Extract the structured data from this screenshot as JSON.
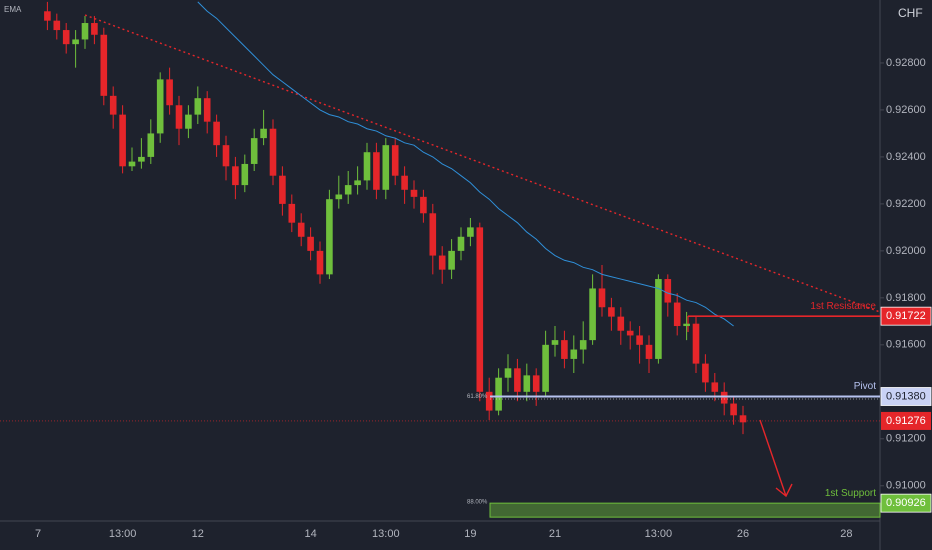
{
  "chart_data": {
    "type": "candlestick",
    "indicator": "EMA",
    "currency": "CHF",
    "categories": [
      "7",
      null,
      null,
      null,
      null,
      null,
      null,
      null,
      null,
      "13:00",
      null,
      null,
      null,
      null,
      null,
      null,
      null,
      "12",
      null,
      null,
      null,
      null,
      null,
      null,
      null,
      null,
      null,
      null,
      null,
      "14",
      null,
      null,
      null,
      null,
      null,
      null,
      null,
      "13:00",
      null,
      null,
      null,
      null,
      null,
      null,
      null,
      null,
      "19",
      null,
      null,
      null,
      null,
      null,
      null,
      null,
      null,
      "21",
      null,
      null,
      null,
      null,
      null,
      null,
      null,
      null,
      null,
      null,
      "13:00",
      null,
      null,
      null,
      null,
      null,
      null,
      null,
      null,
      "26",
      null,
      null,
      null,
      null,
      null,
      null,
      null,
      null,
      null,
      null,
      "28",
      null,
      null,
      null
    ],
    "open": [
      null,
      0.9302,
      0.9298,
      0.9294,
      0.9288,
      0.929,
      0.9297,
      0.9292,
      0.9266,
      0.9258,
      0.9236,
      0.9238,
      0.924,
      0.925,
      0.9273,
      0.9262,
      0.9252,
      0.9258,
      0.9265,
      0.9255,
      0.9245,
      0.9236,
      0.9228,
      0.9237,
      0.9248,
      0.9252,
      0.9232,
      0.922,
      0.9212,
      0.9206,
      0.92,
      0.919,
      0.9222,
      0.9224,
      0.9228,
      0.923,
      0.9242,
      0.9226,
      0.9245,
      0.9232,
      0.9226,
      0.9223,
      0.9216,
      0.9198,
      0.9192,
      0.92,
      0.9206,
      0.921,
      0.914,
      0.9132,
      0.9146,
      0.915,
      0.914,
      0.9147,
      0.914,
      0.916,
      0.9162,
      0.9154,
      0.9158,
      0.9162,
      0.9184,
      0.9176,
      0.9172,
      0.9166,
      0.9164,
      0.916,
      0.9154,
      0.9188,
      0.9178,
      0.9168,
      0.9169,
      0.9152,
      0.9144,
      0.914,
      0.9135,
      0.913,
      null,
      null,
      null,
      null,
      null,
      null,
      null,
      null,
      null,
      null,
      null,
      null,
      null,
      null
    ],
    "high": [
      null,
      0.9306,
      0.9301,
      0.9297,
      0.9294,
      0.93,
      0.93,
      0.9295,
      0.927,
      0.9262,
      0.9244,
      0.9248,
      0.9256,
      0.9276,
      0.9278,
      0.9266,
      0.9262,
      0.927,
      0.9268,
      0.9258,
      0.9249,
      0.924,
      0.9241,
      0.9252,
      0.926,
      0.9256,
      0.9236,
      0.9224,
      0.9216,
      0.921,
      0.9204,
      0.9226,
      0.9232,
      0.9234,
      0.9236,
      0.9246,
      0.9246,
      0.9248,
      0.9248,
      0.9236,
      0.923,
      0.9226,
      0.922,
      0.9202,
      0.9205,
      0.921,
      0.9214,
      0.9212,
      0.9146,
      0.915,
      0.9156,
      0.9154,
      0.9152,
      0.915,
      0.9166,
      0.9168,
      0.9166,
      0.9164,
      0.917,
      0.919,
      0.9194,
      0.918,
      0.9176,
      0.917,
      0.9168,
      0.9164,
      0.919,
      0.919,
      0.9182,
      0.9174,
      0.9172,
      0.9156,
      0.9148,
      0.9144,
      0.9138,
      0.9134,
      null,
      null,
      null,
      null,
      null,
      null,
      null,
      null,
      null,
      null,
      null,
      null,
      null,
      null
    ],
    "low": [
      null,
      0.9294,
      0.929,
      0.9284,
      0.9278,
      0.9286,
      0.9288,
      0.9262,
      0.9252,
      0.9233,
      0.9234,
      0.9235,
      0.9237,
      0.9246,
      0.9258,
      0.9245,
      0.9248,
      0.9254,
      0.925,
      0.924,
      0.923,
      0.9222,
      0.9225,
      0.9234,
      0.9245,
      0.9228,
      0.9215,
      0.9208,
      0.9202,
      0.9196,
      0.9186,
      0.9188,
      0.9218,
      0.922,
      0.9224,
      0.9226,
      0.9222,
      0.9222,
      0.9228,
      0.922,
      0.9218,
      0.9212,
      0.919,
      0.9186,
      0.9188,
      0.9196,
      0.9202,
      0.9136,
      0.9128,
      0.913,
      0.914,
      0.9136,
      0.9136,
      0.9134,
      0.9138,
      0.9155,
      0.915,
      0.9148,
      0.9152,
      0.916,
      0.9172,
      0.9166,
      0.916,
      0.9158,
      0.9152,
      0.9148,
      0.9152,
      0.9172,
      0.9164,
      0.9162,
      0.9148,
      0.914,
      0.9136,
      0.913,
      0.9126,
      0.9122,
      null,
      null,
      null,
      null,
      null,
      null,
      null,
      null,
      null,
      null,
      null,
      null,
      null,
      null
    ],
    "close": [
      null,
      0.9298,
      0.9294,
      0.9288,
      0.929,
      0.9297,
      0.9292,
      0.9266,
      0.9258,
      0.9236,
      0.9238,
      0.924,
      0.925,
      0.9273,
      0.9262,
      0.9252,
      0.9258,
      0.9265,
      0.9255,
      0.9245,
      0.9236,
      0.9228,
      0.9237,
      0.9248,
      0.9252,
      0.9232,
      0.922,
      0.9212,
      0.9206,
      0.92,
      0.919,
      0.9222,
      0.9224,
      0.9228,
      0.923,
      0.9242,
      0.9226,
      0.9245,
      0.9232,
      0.9226,
      0.9223,
      0.9216,
      0.9198,
      0.9192,
      0.92,
      0.9206,
      0.921,
      0.914,
      0.9132,
      0.9146,
      0.915,
      0.914,
      0.9147,
      0.914,
      0.916,
      0.9162,
      0.9154,
      0.9158,
      0.9162,
      0.9184,
      0.9176,
      0.9172,
      0.9166,
      0.9164,
      0.916,
      0.9154,
      0.9188,
      0.9178,
      0.9168,
      0.9169,
      0.9152,
      0.9144,
      0.914,
      0.9135,
      0.913,
      0.9127,
      null,
      null,
      null,
      null,
      null,
      null,
      null,
      null,
      null,
      null,
      null,
      null,
      null,
      null
    ],
    "ema": {
      "color": "#2f8fd8",
      "values": [
        null,
        null,
        null,
        null,
        null,
        null,
        null,
        null,
        null,
        null,
        null,
        null,
        null,
        null,
        null,
        null,
        null,
        0.9306,
        0.9302,
        0.9299,
        0.9295,
        0.9291,
        0.9287,
        0.9283,
        0.9279,
        0.9275,
        0.9272,
        0.9269,
        0.9266,
        0.9263,
        0.926,
        0.9258,
        0.9257,
        0.9255,
        0.9254,
        0.9252,
        0.9251,
        0.9249,
        0.9248,
        0.9246,
        0.9245,
        0.9242,
        0.924,
        0.9237,
        0.9235,
        0.9232,
        0.9229,
        0.9225,
        0.9222,
        0.9218,
        0.9215,
        0.9212,
        0.9208,
        0.9205,
        0.9201,
        0.9198,
        0.9196,
        0.9195,
        0.9193,
        0.9192,
        0.919,
        0.9189,
        0.9188,
        0.9187,
        0.9186,
        0.9185,
        0.9184,
        0.9182,
        0.9181,
        0.9179,
        0.9178,
        0.9176,
        0.9173,
        0.9171,
        0.9168,
        null,
        null,
        null,
        null,
        null,
        null,
        null,
        null,
        null,
        null,
        null,
        null,
        null,
        null,
        null
      ]
    },
    "up_color": "#6fbf3c",
    "down_color": "#e5262a",
    "ylim": [
      0.9085,
      0.93068
    ],
    "yticks": [
      {
        "value": 0.928,
        "label": "0.92800"
      },
      {
        "value": 0.926,
        "label": "0.92600"
      },
      {
        "value": 0.924,
        "label": "0.92400"
      },
      {
        "value": 0.922,
        "label": "0.92200"
      },
      {
        "value": 0.92,
        "label": "0.92000"
      },
      {
        "value": 0.918,
        "label": "0.91800"
      },
      {
        "value": 0.916,
        "label": "0.91600"
      },
      {
        "value": 0.912,
        "label": "0.91200"
      },
      {
        "value": 0.91,
        "label": "0.91000"
      }
    ],
    "levels": [
      {
        "name": "1st Resistance",
        "value": 0.91722,
        "label": "0.91722",
        "color": "#e5262a"
      },
      {
        "name": "Pivot",
        "value": 0.9138,
        "label": "0.91380",
        "color": "#b7c3f0"
      },
      {
        "name": "1st Support",
        "value": 0.90926,
        "label": "0.90926",
        "color": "#6fbf3c"
      }
    ],
    "last_price": {
      "value": 0.91276,
      "label": "0.91276",
      "color": "#e5262a"
    },
    "fib_labels": [
      "61.80%",
      "88.00%"
    ]
  }
}
